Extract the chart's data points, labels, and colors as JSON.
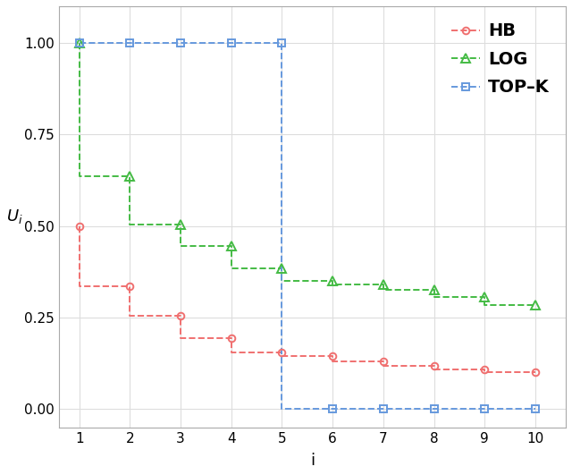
{
  "x": [
    1,
    2,
    3,
    4,
    5,
    6,
    7,
    8,
    9,
    10
  ],
  "HB": [
    0.5,
    0.335,
    0.255,
    0.195,
    0.155,
    0.145,
    0.13,
    0.118,
    0.108,
    0.1
  ],
  "LOG": [
    1.0,
    0.635,
    0.505,
    0.445,
    0.385,
    0.35,
    0.34,
    0.325,
    0.305,
    0.285
  ],
  "TOP_K": [
    1.0,
    1.0,
    1.0,
    1.0,
    1.0,
    0.0,
    0.0,
    0.0,
    0.0,
    0.0
  ],
  "HB_color": "#f07070",
  "LOG_color": "#44bb44",
  "TOPK_color": "#6699dd",
  "bg_color": "#ffffff",
  "grid_color": "#dddddd",
  "xlabel": "i",
  "ylabel": "U_i",
  "xlim": [
    0.6,
    10.6
  ],
  "ylim": [
    -0.05,
    1.1
  ],
  "xticks": [
    1,
    2,
    3,
    4,
    5,
    6,
    7,
    8,
    9,
    10
  ],
  "yticks": [
    0.0,
    0.25,
    0.5,
    0.75,
    1.0
  ],
  "legend_labels": [
    "HB",
    "LOG",
    "TOP–K"
  ]
}
